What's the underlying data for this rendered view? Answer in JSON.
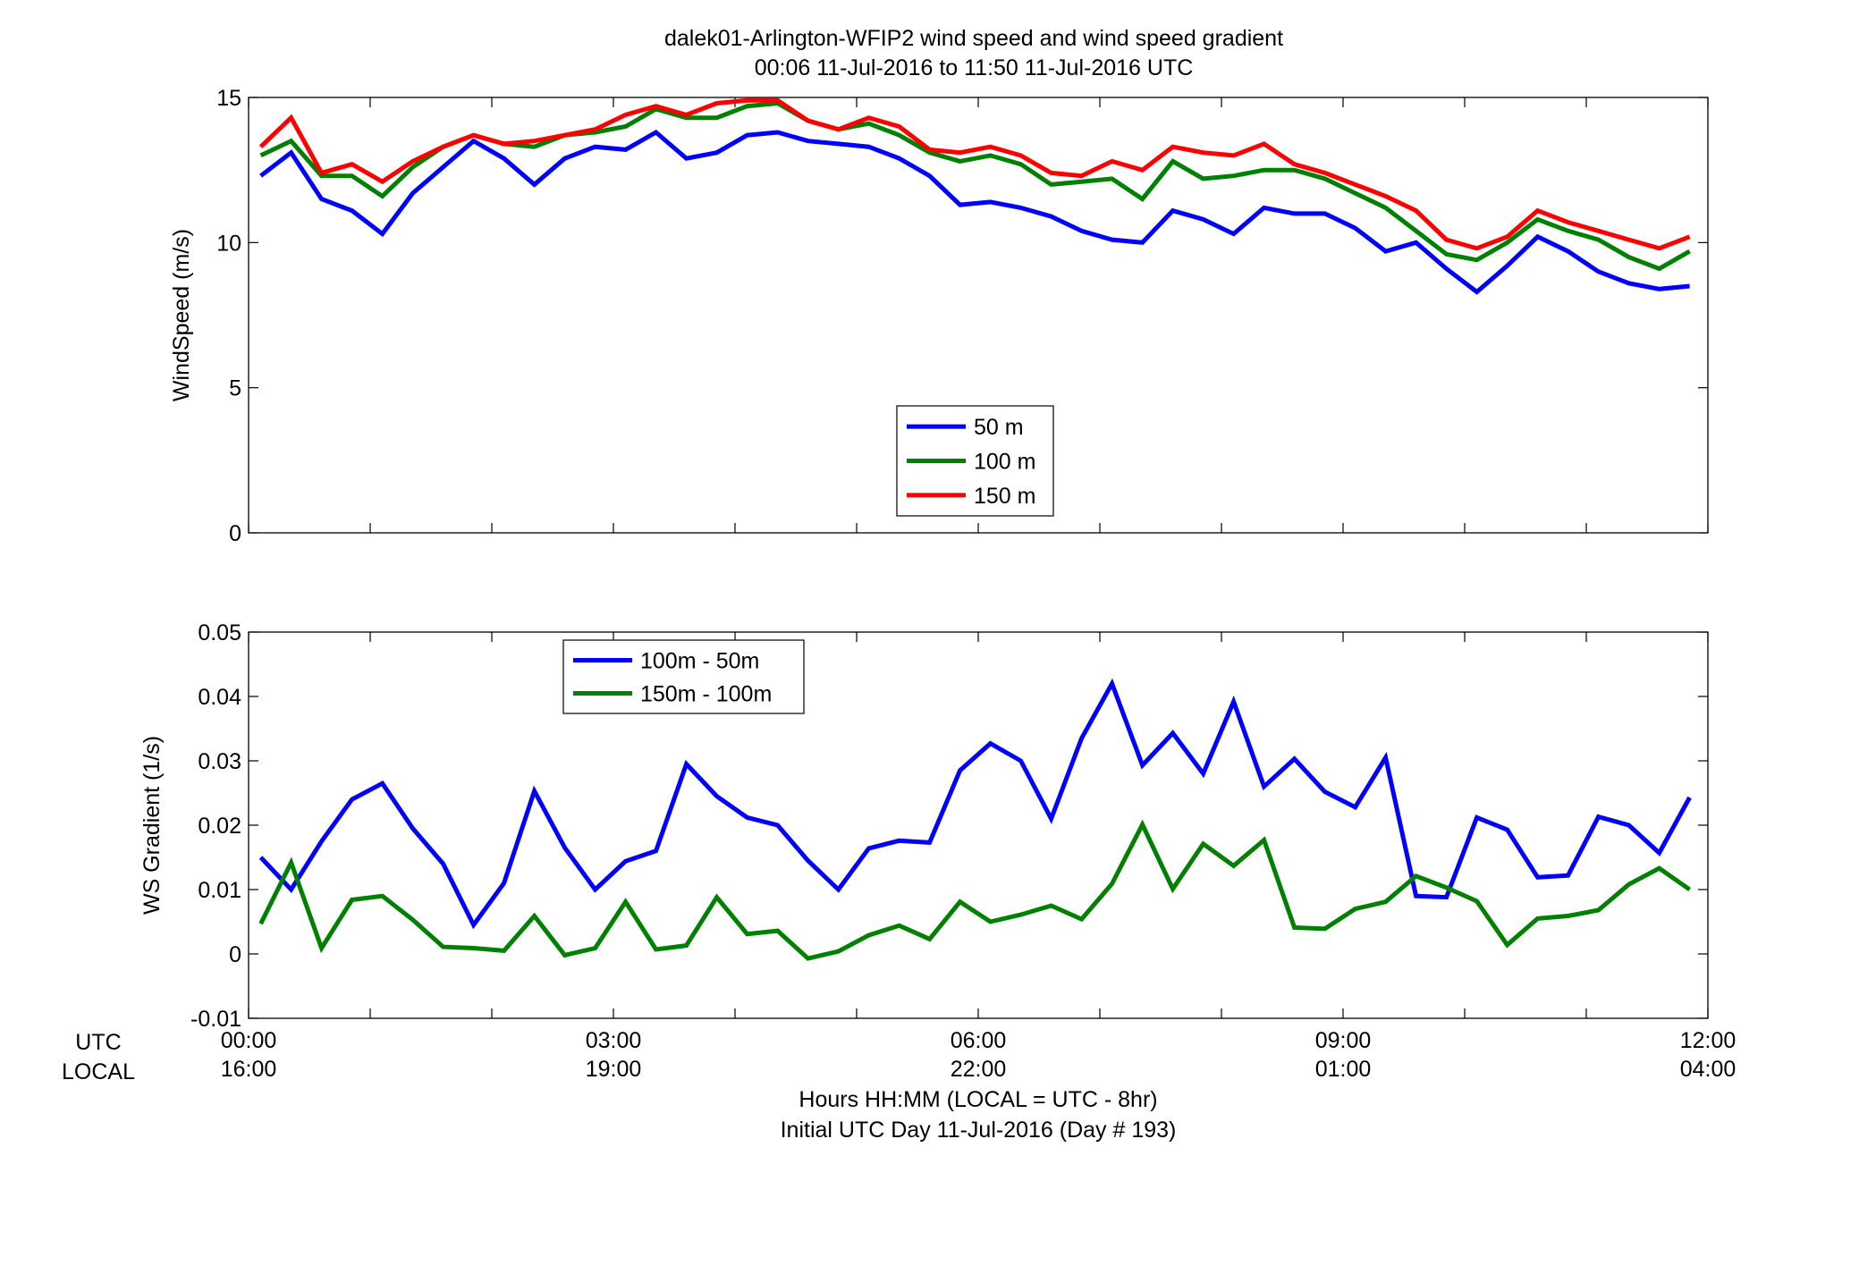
{
  "figure": {
    "title_line1": "dalek01-Arlington-WFIP2  wind speed and wind speed gradient",
    "title_line2": "00:06 11-Jul-2016 to 11:50 11-Jul-2016  UTC",
    "row_label_utc": "UTC",
    "row_label_local": "LOCAL",
    "xlabel_line1": "Hours HH:MM  (LOCAL = UTC - 8hr)",
    "xlabel_line2": "Initial UTC Day 11-Jul-2016 (Day # 193)",
    "x_ticks_utc": [
      "00:00",
      "03:00",
      "06:00",
      "09:00",
      "12:00"
    ],
    "x_ticks_local": [
      "16:00",
      "19:00",
      "22:00",
      "01:00",
      "04:00"
    ]
  },
  "chart_data": [
    {
      "type": "line",
      "ylabel": "WindSpeed (m/s)",
      "xlim": [
        0,
        12
      ],
      "ylim": [
        0,
        15
      ],
      "yticks": [
        0,
        5,
        10,
        15
      ],
      "x_unit": "hours UTC",
      "grid": false,
      "legend_position": "lower-center",
      "x": [
        0.1,
        0.35,
        0.6,
        0.85,
        1.1,
        1.35,
        1.6,
        1.85,
        2.1,
        2.35,
        2.6,
        2.85,
        3.1,
        3.35,
        3.6,
        3.85,
        4.1,
        4.35,
        4.6,
        4.85,
        5.1,
        5.35,
        5.6,
        5.85,
        6.1,
        6.35,
        6.6,
        6.85,
        7.1,
        7.35,
        7.6,
        7.85,
        8.1,
        8.35,
        8.6,
        8.85,
        9.1,
        9.35,
        9.6,
        9.85,
        10.1,
        10.35,
        10.6,
        10.85,
        11.1,
        11.35,
        11.6,
        11.85
      ],
      "series": [
        {
          "name": "50 m",
          "color": "#0000ff",
          "values": [
            12.3,
            13.1,
            11.5,
            11.1,
            10.3,
            11.7,
            12.6,
            13.5,
            12.9,
            12.0,
            12.9,
            13.3,
            13.2,
            13.8,
            12.9,
            13.1,
            13.7,
            13.8,
            13.5,
            13.4,
            13.3,
            12.9,
            12.3,
            11.3,
            11.4,
            11.2,
            10.9,
            10.4,
            10.1,
            10.0,
            11.1,
            10.8,
            10.3,
            11.2,
            11.0,
            11.0,
            10.5,
            9.7,
            10.0,
            9.1,
            8.3,
            9.2,
            10.2,
            9.7,
            9.0,
            8.6,
            8.4,
            8.5
          ]
        },
        {
          "name": "100 m",
          "color": "#008000",
          "values": [
            13.0,
            13.5,
            12.3,
            12.3,
            11.6,
            12.6,
            13.3,
            13.7,
            13.4,
            13.3,
            13.7,
            13.8,
            14.0,
            14.6,
            14.3,
            14.3,
            14.7,
            14.8,
            14.2,
            13.9,
            14.1,
            13.7,
            13.1,
            12.8,
            13.0,
            12.7,
            12.0,
            12.1,
            12.2,
            11.5,
            12.8,
            12.2,
            12.3,
            12.5,
            12.5,
            12.2,
            11.7,
            11.2,
            10.4,
            9.6,
            9.4,
            10.0,
            10.8,
            10.4,
            10.1,
            9.5,
            9.1,
            9.7
          ]
        },
        {
          "name": "150 m",
          "color": "#ff0000",
          "values": [
            13.3,
            14.3,
            12.4,
            12.7,
            12.1,
            12.8,
            13.3,
            13.7,
            13.4,
            13.5,
            13.7,
            13.9,
            14.4,
            14.7,
            14.4,
            14.8,
            14.9,
            14.9,
            14.2,
            13.9,
            14.3,
            14.0,
            13.2,
            13.1,
            13.3,
            13.0,
            12.4,
            12.3,
            12.8,
            12.5,
            13.3,
            13.1,
            13.0,
            13.4,
            12.7,
            12.4,
            12.0,
            11.6,
            11.1,
            10.1,
            9.8,
            10.2,
            11.1,
            10.7,
            10.4,
            10.1,
            9.8,
            10.2
          ]
        }
      ]
    },
    {
      "type": "line",
      "ylabel": "WS Gradient (1/s)",
      "xlim": [
        0,
        12
      ],
      "ylim": [
        -0.01,
        0.05
      ],
      "yticks": [
        -0.01,
        0,
        0.01,
        0.02,
        0.03,
        0.04,
        0.05
      ],
      "ytick_labels": [
        "-0.01",
        "0",
        "0.01",
        "0.02",
        "0.03",
        "0.04",
        "0.05"
      ],
      "x_unit": "hours UTC",
      "grid": false,
      "legend_position": "upper-left",
      "x": [
        0.1,
        0.35,
        0.6,
        0.85,
        1.1,
        1.35,
        1.6,
        1.85,
        2.1,
        2.35,
        2.6,
        2.85,
        3.1,
        3.35,
        3.6,
        3.85,
        4.1,
        4.35,
        4.6,
        4.85,
        5.1,
        5.35,
        5.6,
        5.85,
        6.1,
        6.35,
        6.6,
        6.85,
        7.1,
        7.35,
        7.6,
        7.85,
        8.1,
        8.35,
        8.6,
        8.85,
        9.1,
        9.35,
        9.6,
        9.85,
        10.1,
        10.35,
        10.6,
        10.85,
        11.1,
        11.35,
        11.6,
        11.85
      ],
      "series": [
        {
          "name": "100m - 50m",
          "color": "#0000ff",
          "values": [
            0.015,
            0.01,
            0.0175,
            0.024,
            0.0265,
            0.0195,
            0.014,
            0.0045,
            0.011,
            0.0253,
            0.0165,
            0.01,
            0.0144,
            0.016,
            0.0295,
            0.0245,
            0.0212,
            0.02,
            0.0145,
            0.01,
            0.0164,
            0.0176,
            0.0173,
            0.0285,
            0.0327,
            0.03,
            0.021,
            0.0335,
            0.042,
            0.0293,
            0.0343,
            0.028,
            0.0392,
            0.026,
            0.0303,
            0.0252,
            0.0228,
            0.0305,
            0.009,
            0.0088,
            0.0212,
            0.0193,
            0.0119,
            0.0122,
            0.0213,
            0.02,
            0.0157,
            0.0243
          ]
        },
        {
          "name": "150m - 100m",
          "color": "#008000",
          "values": [
            0.0047,
            0.0142,
            0.0009,
            0.0084,
            0.009,
            0.0053,
            0.0011,
            0.0009,
            0.0005,
            0.0059,
            -0.0002,
            0.0009,
            0.0081,
            0.0007,
            0.0013,
            0.0088,
            0.0031,
            0.0036,
            -0.0007,
            0.0004,
            0.0029,
            0.0044,
            0.0023,
            0.0081,
            0.005,
            0.0061,
            0.0075,
            0.0054,
            0.0109,
            0.0201,
            0.0101,
            0.0171,
            0.0137,
            0.0177,
            0.0041,
            0.0039,
            0.007,
            0.0081,
            0.0121,
            0.0103,
            0.0082,
            0.0014,
            0.0055,
            0.0059,
            0.0068,
            0.0108,
            0.0133,
            0.01
          ]
        }
      ]
    }
  ]
}
